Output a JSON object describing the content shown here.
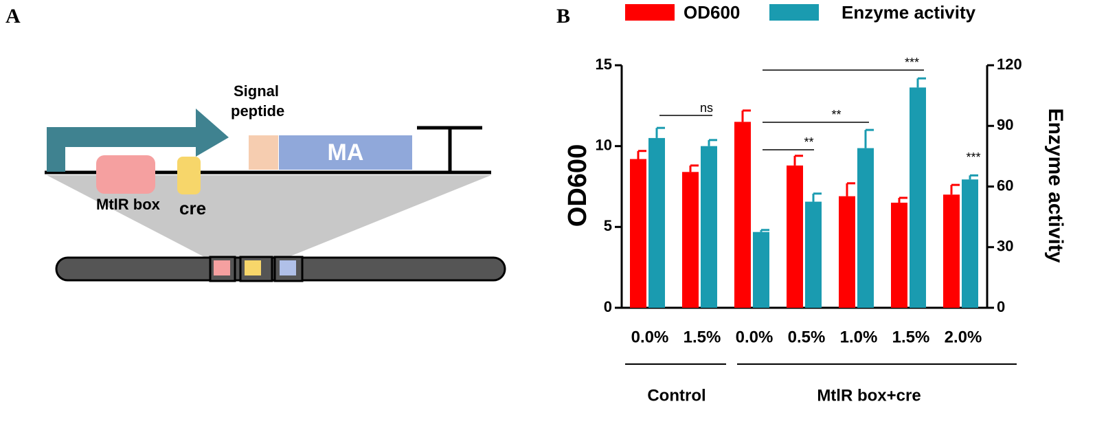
{
  "panel_a": {
    "label": "A",
    "signal_peptide": [
      "Signal",
      "peptide"
    ],
    "gene": "MA",
    "box": "MtlR box",
    "cre": "cre"
  },
  "chart_data": {
    "type": "bar",
    "panel_label": "B",
    "categories": [
      "0.0%",
      "1.5%",
      "0.0%",
      "0.5%",
      "1.0%",
      "1.5%",
      "2.0%"
    ],
    "groups": [
      "Control",
      "MtlR box+cre"
    ],
    "series": [
      {
        "name": "OD600",
        "color": "#ff0000",
        "values": [
          9.2,
          8.4,
          11.5,
          8.8,
          6.9,
          6.5,
          7.0
        ],
        "errors": [
          0.5,
          0.4,
          0.7,
          0.6,
          0.8,
          0.3,
          0.6
        ]
      },
      {
        "name": "Enzyme activity",
        "color": "#1a9bb0",
        "axis": "y2",
        "values": [
          84,
          80,
          37.5,
          52.5,
          79,
          109,
          63.5
        ],
        "errors": [
          5,
          3,
          1,
          4,
          9,
          4.5,
          2
        ]
      }
    ],
    "ylabel": "OD600",
    "y2label": "Enzyme activity",
    "ylim": [
      0,
      15
    ],
    "yticks": [
      0,
      5,
      10,
      15
    ],
    "y2lim": [
      0,
      120
    ],
    "y2ticks": [
      0,
      30,
      60,
      90,
      120
    ],
    "annotations": [
      "ns",
      "**",
      "**",
      "***",
      "***"
    ]
  }
}
